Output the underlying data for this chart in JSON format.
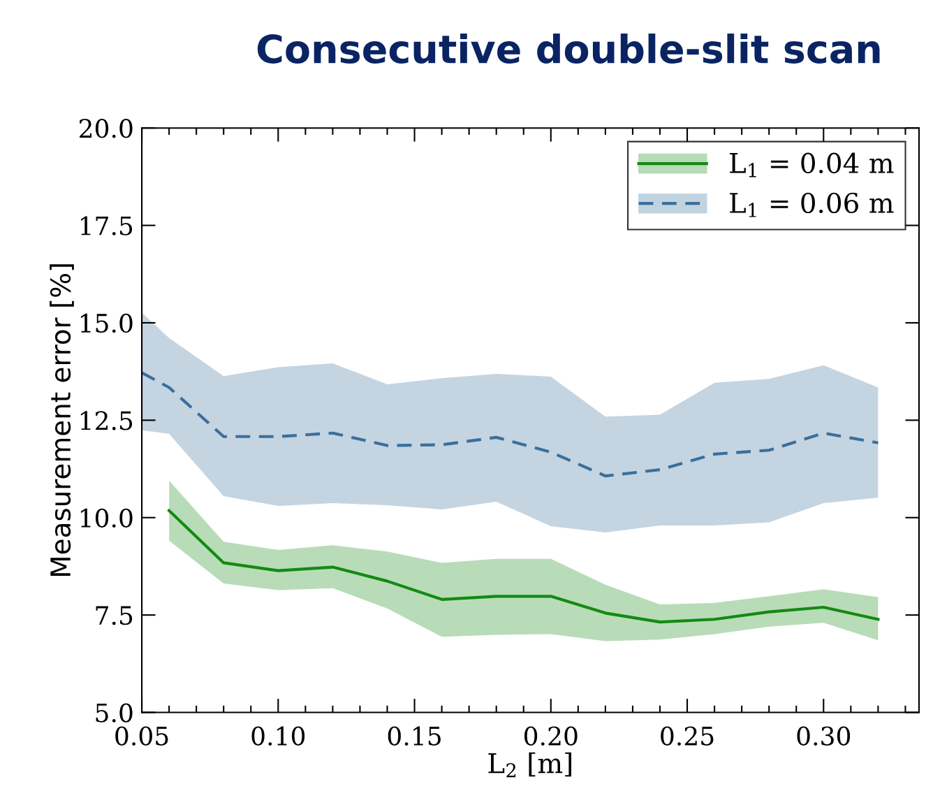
{
  "chart_data": {
    "type": "line",
    "title": "Consecutive double-slit scan",
    "xlabel": "L$_{2}$ [m]",
    "ylabel": "Measurement error [%]",
    "xlim": [
      0.05,
      0.335
    ],
    "xticks": [
      {
        "value": 0.05,
        "label": "0.05"
      },
      {
        "value": 0.1,
        "label": "0.10"
      },
      {
        "value": 0.15,
        "label": "0.15"
      },
      {
        "value": 0.2,
        "label": "0.20"
      },
      {
        "value": 0.25,
        "label": "0.25"
      },
      {
        "value": 0.3,
        "label": "0.30"
      }
    ],
    "ylim": [
      5.0,
      20.0
    ],
    "yticks": [
      {
        "value": 5.0,
        "label": "5.0"
      },
      {
        "value": 7.5,
        "label": "7.5"
      },
      {
        "value": 10.0,
        "label": "10.0"
      },
      {
        "value": 12.5,
        "label": "12.5"
      },
      {
        "value": 15.0,
        "label": "15.0"
      },
      {
        "value": 17.5,
        "label": "17.5"
      },
      {
        "value": 20.0,
        "label": "20.0"
      }
    ],
    "legend": "top right",
    "grid": false,
    "marker": "none",
    "series": [
      {
        "name": "L$_{1}$ = 0.04 m",
        "color": "#138a13",
        "line_style": "solid",
        "x": [
          0.06,
          0.08,
          0.1,
          0.12,
          0.14,
          0.16,
          0.18,
          0.2,
          0.22,
          0.24,
          0.26,
          0.28,
          0.3,
          0.32
        ],
        "values": [
          10.18,
          8.84,
          8.64,
          8.73,
          8.37,
          7.9,
          7.98,
          7.98,
          7.55,
          7.32,
          7.39,
          7.58,
          7.7,
          7.39
        ],
        "lower": [
          9.41,
          8.31,
          8.14,
          8.19,
          7.67,
          6.94,
          6.99,
          7.01,
          6.83,
          6.87,
          7.01,
          7.2,
          7.3,
          6.85
        ],
        "upper": [
          10.95,
          9.38,
          9.17,
          9.29,
          9.13,
          8.84,
          8.94,
          8.94,
          8.28,
          7.77,
          7.81,
          7.98,
          8.16,
          7.96
        ]
      },
      {
        "name": "L$_{1}$ = 0.06 m",
        "color": "#3a6f9c",
        "line_style": "dashed",
        "x": [
          0.05,
          0.06,
          0.08,
          0.1,
          0.12,
          0.14,
          0.16,
          0.18,
          0.2,
          0.22,
          0.24,
          0.26,
          0.28,
          0.3,
          0.32
        ],
        "values": [
          13.72,
          13.34,
          12.08,
          12.08,
          12.17,
          11.85,
          11.87,
          12.06,
          11.68,
          11.07,
          11.23,
          11.63,
          11.73,
          12.17,
          11.92
        ],
        "lower": [
          12.24,
          12.15,
          10.55,
          10.3,
          10.37,
          10.32,
          10.21,
          10.41,
          9.78,
          9.62,
          9.8,
          9.8,
          9.88,
          10.37,
          10.51
        ],
        "upper": [
          15.26,
          14.61,
          13.63,
          13.86,
          13.96,
          13.42,
          13.58,
          13.69,
          13.62,
          12.59,
          12.64,
          13.46,
          13.56,
          13.91,
          13.34
        ]
      }
    ]
  }
}
